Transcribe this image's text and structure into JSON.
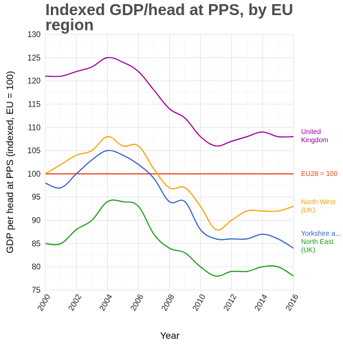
{
  "chart_data": {
    "type": "line",
    "title_lines": [
      "Indexed GDP/head at PPS, by EU",
      "region"
    ],
    "xlabel": "Year",
    "ylabel": "GDP per head at PPS (indexed, EU = 100)",
    "xlim": [
      2000,
      2016
    ],
    "ylim": [
      75,
      130
    ],
    "x_ticks": [
      "2000",
      "2002",
      "2004",
      "2006",
      "2008",
      "2010",
      "2012",
      "2014",
      "2016"
    ],
    "y_ticks": [
      "75",
      "80",
      "85",
      "90",
      "95",
      "100",
      "105",
      "110",
      "115",
      "120",
      "125",
      "130"
    ],
    "grid": true,
    "legend": "direct labels at right",
    "x": [
      2000,
      2001,
      2002,
      2003,
      2004,
      2005,
      2006,
      2007,
      2008,
      2009,
      2010,
      2011,
      2012,
      2013,
      2014,
      2015,
      2016
    ],
    "series": [
      {
        "name": "United Kingdom",
        "label_lines": [
          "United",
          "Kingdom"
        ],
        "color": "#9b009b",
        "values": [
          121,
          121,
          122,
          123,
          125,
          124,
          122,
          118,
          114,
          112,
          108,
          106,
          107,
          108,
          109,
          108,
          108
        ]
      },
      {
        "name": "EU28 = 100",
        "label_lines": [
          "EU28 = 100"
        ],
        "color": "#e8401c",
        "values": [
          100,
          100,
          100,
          100,
          100,
          100,
          100,
          100,
          100,
          100,
          100,
          100,
          100,
          100,
          100,
          100,
          100
        ]
      },
      {
        "name": "North West (UK)",
        "label_lines": [
          "North West",
          "(UK)"
        ],
        "color": "#f5a000",
        "values": [
          100,
          102,
          104,
          105,
          108,
          106,
          106,
          101,
          97,
          97,
          93,
          88,
          90,
          92,
          92,
          92,
          93
        ]
      },
      {
        "name": "Yorkshire a…",
        "label_lines": [
          "Yorkshire a…"
        ],
        "color": "#3060c0",
        "values": [
          98,
          97,
          100,
          103,
          105,
          104,
          102,
          99,
          94,
          94,
          88,
          86,
          86,
          86,
          87,
          86,
          84
        ]
      },
      {
        "name": "North East (UK)",
        "label_lines": [
          "North East",
          "(UK)"
        ],
        "color": "#1a9a1a",
        "values": [
          85,
          85,
          88,
          90,
          94,
          94,
          93,
          87,
          84,
          83,
          80,
          78,
          79,
          79,
          80,
          80,
          78
        ]
      }
    ]
  }
}
